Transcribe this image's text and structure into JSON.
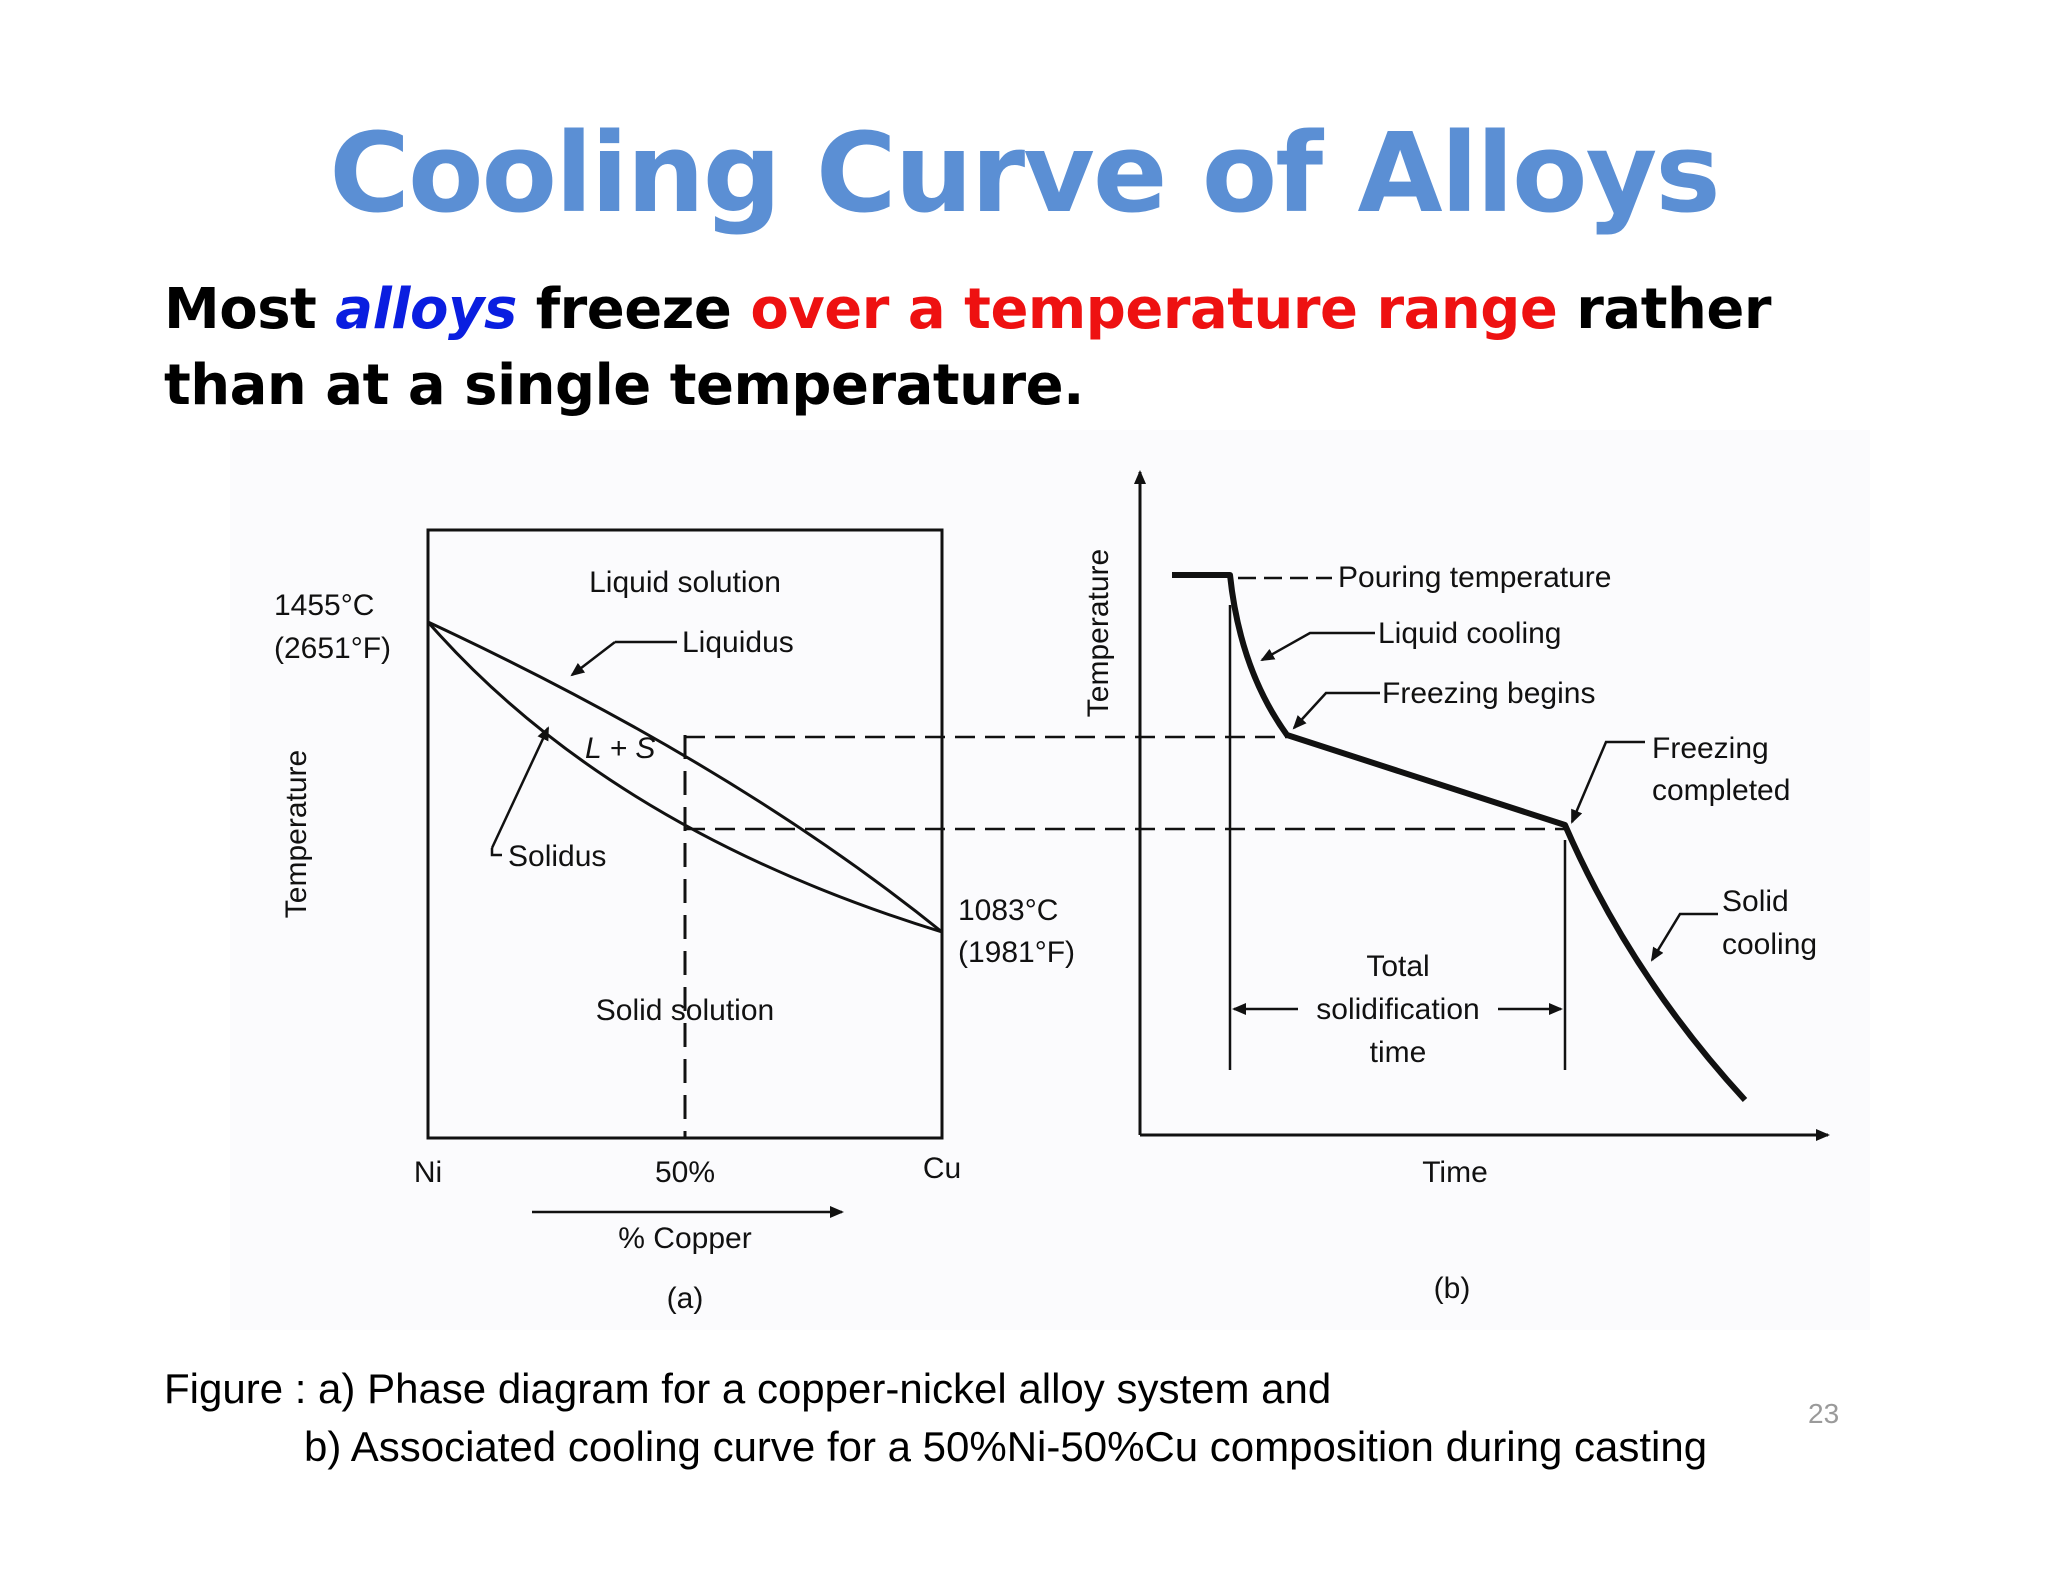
{
  "slide": {
    "title": "Cooling Curve of Alloys",
    "lead": {
      "part1": "Most ",
      "alloys": "alloys",
      "part2": " freeze ",
      "range": "over a temperature range",
      "part3": " rather than at a single temperature."
    },
    "caption": {
      "line1": "Figure : a) Phase diagram for a copper-nickel alloy system and",
      "line2": "b) Associated cooling curve for a 50%Ni-50%Cu composition during casting"
    },
    "page_number": "23"
  },
  "diagram_a": {
    "region_liquid": "Liquid solution",
    "liquidus_label": "Liquidus",
    "two_phase_label": "L + S",
    "solidus_label": "Solidus",
    "region_solid": "Solid solution",
    "ni_melt_c": "1455°C",
    "ni_melt_f": "(2651°F)",
    "cu_melt_c": "1083°C",
    "cu_melt_f": "(1981°F)",
    "y_axis_label": "Temperature",
    "tick_ni": "Ni",
    "tick_mid": "50%",
    "tick_cu": "Cu",
    "x_axis_label": "% Copper",
    "panel_label": "(a)"
  },
  "diagram_b": {
    "y_axis_label": "Temperature",
    "pouring": "Pouring temperature",
    "liquid_cooling": "Liquid cooling",
    "freezing_begins": "Freezing begins",
    "freezing_completed_1": "Freezing",
    "freezing_completed_2": "completed",
    "solid_cooling_1": "Solid",
    "solid_cooling_2": "cooling",
    "total_1": "Total",
    "total_2": "solidification",
    "total_3": "time",
    "x_axis_label": "Time",
    "panel_label": "(b)"
  },
  "colors": {
    "title": "#5b8fd4",
    "alloys": "#0a1ee0",
    "range": "#ee1111",
    "ink": "#111111",
    "page_number": "#9a9a9a"
  }
}
